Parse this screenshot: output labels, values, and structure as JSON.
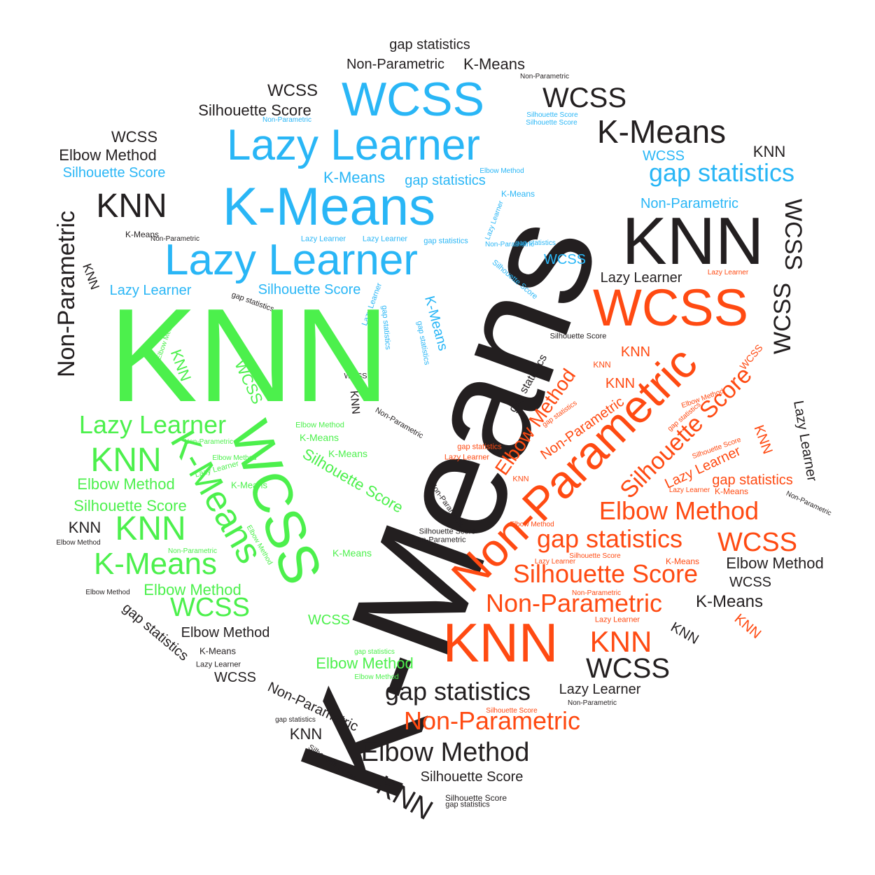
{
  "colors": {
    "dark": "#231f20",
    "blue": "#29b6f6",
    "green": "#4cf04c",
    "red": "#ff4a12",
    "background": "#ffffff"
  },
  "words": [
    "K-Means",
    "KNN",
    "WCSS",
    "Non-Parametric",
    "Lazy Learner",
    "Elbow Method",
    "Silhouette Score",
    "gap statistics"
  ]
}
